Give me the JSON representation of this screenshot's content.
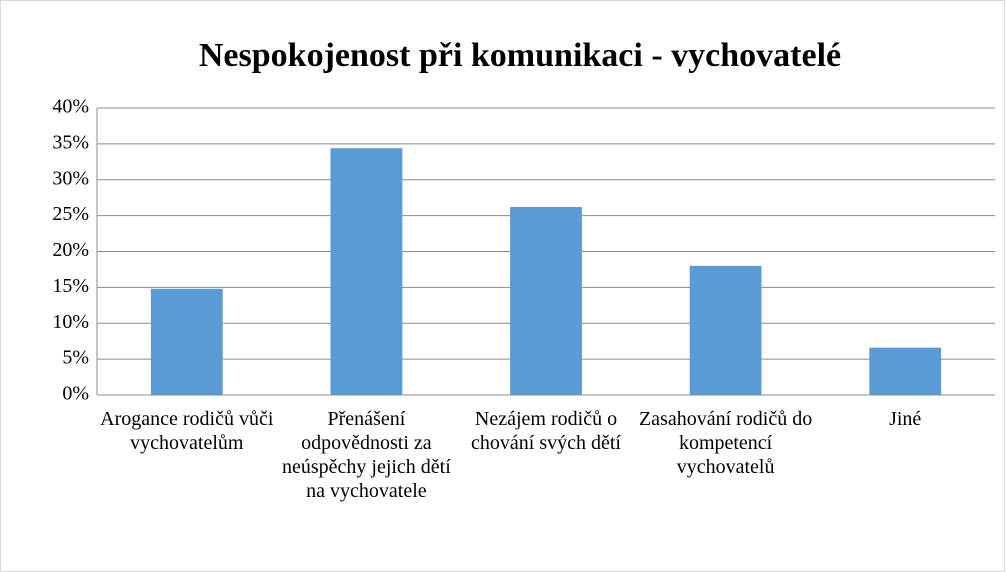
{
  "chart_data": {
    "type": "bar",
    "title": "Nespokojenost při komunikaci - vychovatelé",
    "categories": [
      "Arogance rodičů vůči vychovatelům",
      "Přenášení odpovědnosti za neúspěchy jejich dětí na vychovatele",
      "Nezájem rodičů o chování svých dětí",
      "Zasahování rodičů do kompetencí vychovatelů",
      "Jiné"
    ],
    "values": [
      14.8,
      34.4,
      26.2,
      18.0,
      6.6
    ],
    "color": "#5b9bd5",
    "ylim": [
      0,
      40
    ],
    "yticks": [
      {
        "value": 0,
        "label": "0%"
      },
      {
        "value": 5,
        "label": "5%"
      },
      {
        "value": 10,
        "label": "10%"
      },
      {
        "value": 15,
        "label": "15%"
      },
      {
        "value": 20,
        "label": "20%"
      },
      {
        "value": 25,
        "label": "25%"
      },
      {
        "value": 30,
        "label": "30%"
      },
      {
        "value": 35,
        "label": "35%"
      },
      {
        "value": 40,
        "label": "40%"
      }
    ],
    "grid": true
  }
}
